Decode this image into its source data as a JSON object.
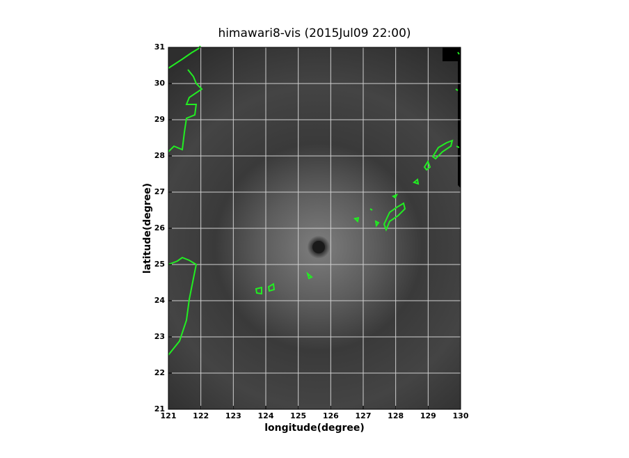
{
  "chart_data": {
    "type": "image",
    "title": "himawari8-vis (2015Jul09 22:00)",
    "x_label": "longitude(degree)",
    "y_label": "latitude(degree)",
    "xlim": [
      121,
      130
    ],
    "ylim": [
      21,
      31
    ],
    "xticks": [
      121,
      122,
      123,
      124,
      125,
      126,
      127,
      128,
      129,
      130
    ],
    "yticks": [
      21,
      22,
      23,
      24,
      25,
      26,
      27,
      28,
      29,
      30,
      31
    ],
    "grid": true,
    "grid_color": "#d0d0d0",
    "coast_color": "#22ee22"
  }
}
